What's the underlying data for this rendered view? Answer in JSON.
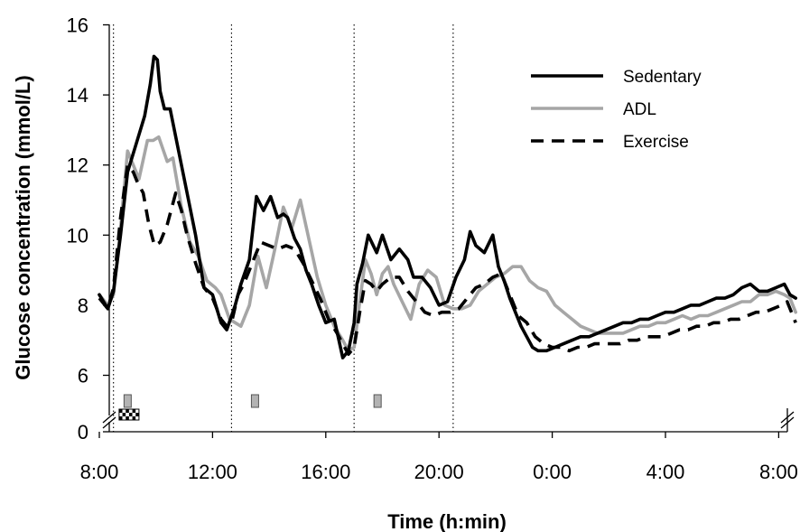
{
  "chart_data": {
    "type": "line",
    "title": "",
    "xlabel": "Time (h:min)",
    "ylabel": "Glucose concentration (mmol/L)",
    "x_unit": "hours since 8:00",
    "xlim": [
      0,
      24.7
    ],
    "ylim": [
      6,
      16
    ],
    "y_axis_break": true,
    "y_ticks": [
      6,
      8,
      10,
      12,
      14,
      16
    ],
    "y_zero_label": "0",
    "x_ticks": [
      {
        "x": 0,
        "label": "8:00"
      },
      {
        "x": 4,
        "label": "12:00"
      },
      {
        "x": 8,
        "label": "16:00"
      },
      {
        "x": 12,
        "label": "20:00"
      },
      {
        "x": 16,
        "label": "0:00"
      },
      {
        "x": 20,
        "label": "4:00"
      },
      {
        "x": 24,
        "label": "8:00"
      }
    ],
    "vertical_reference_lines": [
      0.5,
      4.67,
      9.0,
      12.5
    ],
    "legend_position": "top-right",
    "grid": false,
    "event_markers": [
      {
        "x": 1.0,
        "kind": "gray"
      },
      {
        "x": 5.5,
        "kind": "gray"
      },
      {
        "x": 9.83,
        "kind": "gray"
      },
      {
        "x": 1.05,
        "kind": "checkered"
      }
    ],
    "series": [
      {
        "name": "Sedentary",
        "style": "solid",
        "color": "#000000",
        "x": [
          0.0,
          0.3,
          0.5,
          0.75,
          1.0,
          1.3,
          1.6,
          1.8,
          1.93,
          2.05,
          2.15,
          2.3,
          2.5,
          2.8,
          3.1,
          3.4,
          3.7,
          4.0,
          4.3,
          4.5,
          4.8,
          5.0,
          5.3,
          5.55,
          5.8,
          6.05,
          6.3,
          6.5,
          6.65,
          6.9,
          7.1,
          7.3,
          7.5,
          7.75,
          8.0,
          8.3,
          8.6,
          8.8,
          9.0,
          9.1,
          9.3,
          9.5,
          9.8,
          10.0,
          10.3,
          10.6,
          10.9,
          11.1,
          11.4,
          11.7,
          12.0,
          12.3,
          12.6,
          12.9,
          13.1,
          13.3,
          13.6,
          13.9,
          14.1,
          14.3,
          14.5,
          14.7,
          14.9,
          15.1,
          15.3,
          15.5,
          15.8,
          16.1,
          16.4,
          16.7,
          17.0,
          17.3,
          17.6,
          17.9,
          18.2,
          18.5,
          18.8,
          19.1,
          19.4,
          19.7,
          20.0,
          20.3,
          20.6,
          20.9,
          21.2,
          21.5,
          21.8,
          22.1,
          22.4,
          22.7,
          23.0,
          23.3,
          23.6,
          23.9,
          24.2,
          24.4,
          24.6
        ],
        "values": [
          8.3,
          7.9,
          8.4,
          10.0,
          11.8,
          12.6,
          13.4,
          14.3,
          15.1,
          15.0,
          14.1,
          13.6,
          13.6,
          12.4,
          11.2,
          10.0,
          8.5,
          8.3,
          7.5,
          7.3,
          8.0,
          8.6,
          9.3,
          11.1,
          10.7,
          11.1,
          10.5,
          10.6,
          10.5,
          9.9,
          9.6,
          9.0,
          8.6,
          8.0,
          7.5,
          7.6,
          6.5,
          6.7,
          7.5,
          8.6,
          9.2,
          10.0,
          9.5,
          10.0,
          9.3,
          9.6,
          9.3,
          8.8,
          8.8,
          8.5,
          8.0,
          8.1,
          8.8,
          9.3,
          10.1,
          9.7,
          9.5,
          10.0,
          9.1,
          8.7,
          8.2,
          7.8,
          7.4,
          7.1,
          6.8,
          6.7,
          6.7,
          6.8,
          6.9,
          7.0,
          7.1,
          7.1,
          7.2,
          7.3,
          7.4,
          7.5,
          7.5,
          7.6,
          7.6,
          7.7,
          7.8,
          7.8,
          7.9,
          8.0,
          8.0,
          8.1,
          8.2,
          8.2,
          8.3,
          8.5,
          8.6,
          8.4,
          8.4,
          8.5,
          8.6,
          8.3,
          8.2
        ]
      },
      {
        "name": "ADL",
        "style": "solid",
        "color": "#a6a6a6",
        "x": [
          0.0,
          0.3,
          0.5,
          0.75,
          1.0,
          1.2,
          1.4,
          1.7,
          1.9,
          2.1,
          2.4,
          2.6,
          2.9,
          3.2,
          3.5,
          3.8,
          4.1,
          4.3,
          4.6,
          4.8,
          5.0,
          5.3,
          5.6,
          5.9,
          6.2,
          6.5,
          6.8,
          7.1,
          7.4,
          7.7,
          8.0,
          8.3,
          8.6,
          8.8,
          9.0,
          9.2,
          9.4,
          9.6,
          9.8,
          10.0,
          10.2,
          10.4,
          10.7,
          11.0,
          11.3,
          11.6,
          11.9,
          12.2,
          12.5,
          12.8,
          13.1,
          13.4,
          13.7,
          14.0,
          14.3,
          14.6,
          14.9,
          15.2,
          15.5,
          15.8,
          16.1,
          16.4,
          16.7,
          17.0,
          17.3,
          17.6,
          17.9,
          18.2,
          18.5,
          18.8,
          19.1,
          19.4,
          19.7,
          20.0,
          20.3,
          20.6,
          20.9,
          21.2,
          21.5,
          21.8,
          22.1,
          22.4,
          22.7,
          23.0,
          23.3,
          23.6,
          23.9,
          24.2,
          24.4,
          24.6
        ],
        "values": [
          8.3,
          8.0,
          8.3,
          10.2,
          12.4,
          12.0,
          11.6,
          12.7,
          12.7,
          12.8,
          12.1,
          12.2,
          10.8,
          9.8,
          9.4,
          8.7,
          8.5,
          8.3,
          7.6,
          7.5,
          7.4,
          8.0,
          9.4,
          8.5,
          9.6,
          10.8,
          10.2,
          11.0,
          9.9,
          8.8,
          8.0,
          7.4,
          7.0,
          6.7,
          6.8,
          8.1,
          9.3,
          8.9,
          8.3,
          8.9,
          9.1,
          8.6,
          8.1,
          7.6,
          8.6,
          9.0,
          8.8,
          8.0,
          7.9,
          7.9,
          8.0,
          8.4,
          8.6,
          8.8,
          8.9,
          9.1,
          9.1,
          8.7,
          8.5,
          8.4,
          8.0,
          7.8,
          7.6,
          7.4,
          7.3,
          7.2,
          7.2,
          7.2,
          7.2,
          7.3,
          7.4,
          7.4,
          7.5,
          7.5,
          7.6,
          7.7,
          7.6,
          7.7,
          7.7,
          7.8,
          7.9,
          8.0,
          8.1,
          8.1,
          8.3,
          8.3,
          8.4,
          8.3,
          8.2,
          7.8
        ]
      },
      {
        "name": "Exercise",
        "style": "dashed",
        "color": "#000000",
        "x": [
          0.0,
          0.3,
          0.5,
          0.75,
          1.0,
          1.2,
          1.35,
          1.55,
          1.75,
          1.95,
          2.15,
          2.4,
          2.7,
          2.9,
          3.1,
          3.4,
          3.7,
          4.0,
          4.3,
          4.5,
          4.7,
          4.9,
          5.1,
          5.3,
          5.5,
          5.7,
          6.0,
          6.3,
          6.6,
          6.9,
          7.2,
          7.5,
          7.8,
          8.1,
          8.4,
          8.6,
          8.8,
          9.0,
          9.2,
          9.4,
          9.6,
          9.8,
          10.0,
          10.3,
          10.6,
          10.9,
          11.2,
          11.5,
          11.8,
          12.1,
          12.4,
          12.7,
          13.0,
          13.3,
          13.6,
          13.9,
          14.2,
          14.5,
          14.8,
          15.1,
          15.4,
          15.7,
          16.0,
          16.3,
          16.6,
          16.9,
          17.2,
          17.5,
          17.8,
          18.1,
          18.4,
          18.7,
          19.0,
          19.3,
          19.6,
          19.9,
          20.2,
          20.5,
          20.8,
          21.1,
          21.4,
          21.7,
          22.0,
          22.3,
          22.6,
          22.9,
          23.2,
          23.5,
          23.8,
          24.1,
          24.3,
          24.5,
          24.6
        ],
        "values": [
          8.2,
          7.9,
          8.5,
          10.5,
          12.0,
          11.8,
          11.5,
          11.2,
          10.3,
          9.7,
          9.8,
          10.3,
          11.2,
          10.7,
          10.0,
          9.2,
          8.5,
          8.2,
          7.6,
          7.4,
          7.6,
          8.3,
          8.6,
          9.0,
          9.4,
          9.8,
          9.7,
          9.6,
          9.7,
          9.6,
          9.2,
          8.7,
          8.2,
          7.6,
          7.2,
          6.9,
          6.6,
          6.8,
          7.8,
          8.7,
          8.6,
          8.4,
          8.6,
          8.8,
          8.8,
          8.4,
          8.1,
          7.8,
          7.7,
          7.8,
          7.8,
          7.9,
          8.2,
          8.5,
          8.6,
          8.8,
          8.9,
          8.3,
          7.7,
          7.5,
          7.1,
          6.9,
          6.8,
          6.8,
          6.7,
          6.8,
          6.8,
          6.9,
          6.9,
          6.9,
          6.9,
          7.0,
          7.0,
          7.1,
          7.1,
          7.1,
          7.2,
          7.3,
          7.3,
          7.4,
          7.4,
          7.5,
          7.5,
          7.6,
          7.6,
          7.7,
          7.8,
          7.8,
          7.9,
          8.0,
          8.1,
          7.7,
          7.5
        ]
      }
    ]
  }
}
